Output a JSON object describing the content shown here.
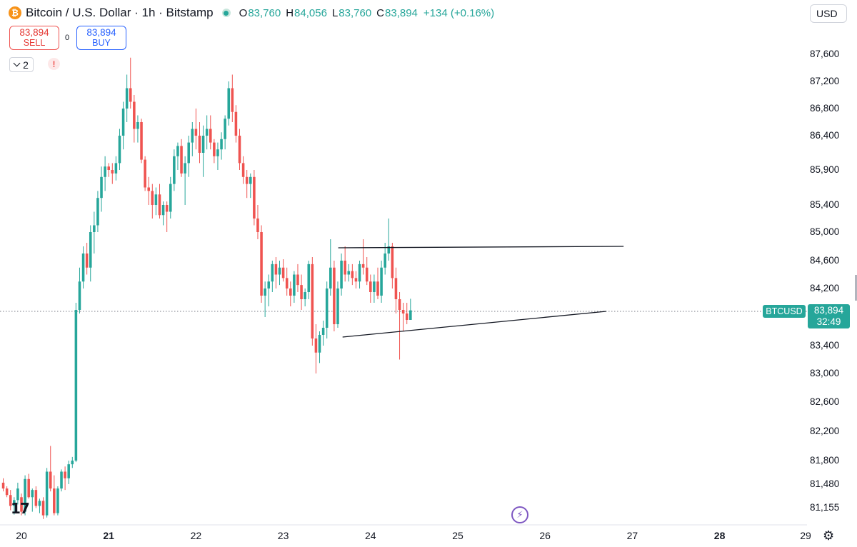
{
  "header": {
    "logo_glyph": "₿",
    "title": "Bitcoin / U.S. Dollar · 1h · Bitstamp",
    "ohlc": [
      {
        "label": "O",
        "value": "83,760"
      },
      {
        "label": "H",
        "value": "84,056"
      },
      {
        "label": "L",
        "value": "83,760"
      },
      {
        "label": "C",
        "value": "83,894"
      }
    ],
    "change": "+134 (+0.16%)"
  },
  "currency": "USD",
  "trade": {
    "sell_price": "83,894",
    "sell_label": "SELL",
    "spread": "0",
    "buy_price": "83,894",
    "buy_label": "BUY"
  },
  "indicators_count": "2",
  "alert_glyph": "!",
  "last_price": {
    "symbol": "BTCUSD",
    "price": "83,894",
    "countdown": "32:49"
  },
  "logo_text": "17",
  "colors": {
    "up": "#26a69a",
    "down": "#ef5350",
    "line": "#131722",
    "text": "#131722"
  },
  "chart_data": {
    "type": "candlestick",
    "symbol": "BTCUSD",
    "interval": "1h",
    "x_tick_labels": [
      "20",
      "21",
      "22",
      "23",
      "24",
      "25",
      "26",
      "27",
      "28",
      "29"
    ],
    "y_tick_labels": [
      "87,600",
      "87,200",
      "86,800",
      "86,400",
      "85,900",
      "85,400",
      "85,000",
      "84,600",
      "84,200",
      "83,400",
      "83,000",
      "82,600",
      "82,200",
      "81,800",
      "81,480",
      "81,155"
    ],
    "last_price": 83894,
    "candles_day_start": 20.0,
    "candles_step_hours": 1,
    "candles": [
      [
        81500,
        81560,
        81380,
        81420
      ],
      [
        81420,
        81450,
        81300,
        81330
      ],
      [
        81330,
        81400,
        81120,
        81180
      ],
      [
        81180,
        81300,
        81060,
        81260
      ],
      [
        81260,
        81500,
        81200,
        81420
      ],
      [
        81300,
        81350,
        81050,
        81100
      ],
      [
        81100,
        81600,
        81050,
        81550
      ],
      [
        81550,
        81620,
        81280,
        81300
      ],
      [
        81300,
        81420,
        81100,
        81400
      ],
      [
        81400,
        81450,
        81150,
        81180
      ],
      [
        81180,
        81280,
        81080,
        81250
      ],
      [
        81250,
        81300,
        81000,
        81050
      ],
      [
        81050,
        81700,
        81020,
        81650
      ],
      [
        81650,
        82000,
        81380,
        81420
      ],
      [
        81420,
        81600,
        81050,
        81080
      ],
      [
        81080,
        81450,
        81050,
        81420
      ],
      [
        81420,
        81680,
        81380,
        81650
      ],
      [
        81650,
        81720,
        81400,
        81560
      ],
      [
        81560,
        81800,
        81480,
        81750
      ],
      [
        81750,
        81850,
        81700,
        81800
      ],
      [
        81800,
        84000,
        81780,
        83900
      ],
      [
        83900,
        84500,
        83850,
        84300
      ],
      [
        84300,
        84800,
        84200,
        84700
      ],
      [
        84700,
        84850,
        84400,
        84500
      ],
      [
        84500,
        85100,
        84300,
        85000
      ],
      [
        85000,
        85300,
        84700,
        85100
      ],
      [
        85100,
        85600,
        85000,
        85500
      ],
      [
        85500,
        85950,
        85300,
        85800
      ],
      [
        85800,
        86100,
        85600,
        85950
      ],
      [
        85950,
        86000,
        85800,
        85900
      ],
      [
        85900,
        86000,
        85700,
        85850
      ],
      [
        85850,
        86100,
        85750,
        86000
      ],
      [
        86000,
        86500,
        85900,
        86400
      ],
      [
        86400,
        86900,
        86200,
        86800
      ],
      [
        86800,
        87300,
        86600,
        87100
      ],
      [
        87100,
        87550,
        86800,
        86900
      ],
      [
        86900,
        87000,
        86300,
        86500
      ],
      [
        86500,
        86700,
        86300,
        86600
      ],
      [
        86600,
        86650,
        86000,
        86050
      ],
      [
        86050,
        86100,
        85600,
        85650
      ],
      [
        85650,
        85800,
        85400,
        85600
      ],
      [
        85600,
        85700,
        85200,
        85400
      ],
      [
        85400,
        85650,
        85250,
        85550
      ],
      [
        85550,
        85700,
        85200,
        85250
      ],
      [
        85250,
        85450,
        85100,
        85400
      ],
      [
        85400,
        85450,
        85000,
        85300
      ],
      [
        85300,
        85800,
        85200,
        85700
      ],
      [
        85700,
        86200,
        85600,
        86100
      ],
      [
        86100,
        86300,
        85900,
        86250
      ],
      [
        86250,
        86350,
        85800,
        85850
      ],
      [
        85850,
        86100,
        85400,
        86000
      ],
      [
        86000,
        86400,
        85800,
        86300
      ],
      [
        86300,
        86600,
        86100,
        86500
      ],
      [
        86500,
        86800,
        86200,
        86400
      ],
      [
        86400,
        86600,
        86000,
        86150
      ],
      [
        86150,
        86550,
        85800,
        86400
      ],
      [
        86400,
        86700,
        86200,
        86500
      ],
      [
        86500,
        86700,
        86200,
        86300
      ],
      [
        86300,
        86350,
        86000,
        86100
      ],
      [
        86100,
        86300,
        85900,
        86200
      ],
      [
        86200,
        86450,
        86050,
        86350
      ],
      [
        86350,
        86700,
        86200,
        86650
      ],
      [
        86650,
        87200,
        86550,
        87100
      ],
      [
        87100,
        87300,
        86600,
        86750
      ],
      [
        86750,
        86850,
        86300,
        86400
      ],
      [
        86400,
        86500,
        85900,
        86000
      ],
      [
        86000,
        86100,
        85700,
        85800
      ],
      [
        85800,
        85900,
        85500,
        85700
      ],
      [
        85700,
        85850,
        85500,
        85800
      ],
      [
        85800,
        85900,
        85100,
        85200
      ],
      [
        85200,
        85400,
        84900,
        85000
      ],
      [
        85000,
        85100,
        84000,
        84100
      ],
      [
        84100,
        84300,
        83800,
        84200
      ],
      [
        84200,
        84400,
        83950,
        84300
      ],
      [
        84300,
        84600,
        84150,
        84550
      ],
      [
        84550,
        84650,
        84200,
        84400
      ],
      [
        84400,
        84600,
        84250,
        84500
      ],
      [
        84500,
        84620,
        84300,
        84350
      ],
      [
        84350,
        84500,
        84100,
        84200
      ],
      [
        84200,
        84300,
        83950,
        84100
      ],
      [
        84100,
        84450,
        84000,
        84400
      ],
      [
        84400,
        84550,
        84150,
        84250
      ],
      [
        84250,
        84400,
        83900,
        84050
      ],
      [
        84050,
        84200,
        83950,
        84150
      ],
      [
        84150,
        84600,
        84050,
        84550
      ],
      [
        84550,
        84650,
        83400,
        83500
      ],
      [
        83500,
        83700,
        83000,
        83300
      ],
      [
        83300,
        83600,
        83150,
        83550
      ],
      [
        83550,
        83750,
        83400,
        83650
      ],
      [
        83650,
        84300,
        83500,
        84200
      ],
      [
        84200,
        84900,
        84100,
        84500
      ],
      [
        84500,
        84600,
        83600,
        83700
      ],
      [
        83700,
        84300,
        83650,
        84200
      ],
      [
        84200,
        84700,
        84100,
        84600
      ],
      [
        84600,
        84800,
        84300,
        84400
      ],
      [
        84400,
        84550,
        84300,
        84450
      ],
      [
        84450,
        84550,
        84250,
        84350
      ],
      [
        84350,
        84450,
        84200,
        84300
      ],
      [
        84300,
        84600,
        84200,
        84550
      ],
      [
        84550,
        84900,
        84400,
        84500
      ],
      [
        84500,
        84650,
        84250,
        84300
      ],
      [
        84300,
        84400,
        84000,
        84150
      ],
      [
        84150,
        84400,
        84000,
        84300
      ],
      [
        84300,
        84500,
        84050,
        84100
      ],
      [
        84100,
        84600,
        84000,
        84500
      ],
      [
        84500,
        84850,
        84400,
        84700
      ],
      [
        84700,
        85200,
        84600,
        84800
      ],
      [
        84800,
        84850,
        84200,
        84350
      ],
      [
        84350,
        84500,
        83850,
        84050
      ],
      [
        84050,
        84150,
        83200,
        83900
      ],
      [
        83900,
        84000,
        83600,
        83850
      ],
      [
        83850,
        84000,
        83700,
        83760
      ],
      [
        83760,
        84056,
        83760,
        83894
      ]
    ],
    "annotations": [
      {
        "type": "trendline",
        "points": [
          [
            23.63,
            84780
          ],
          [
            26.9,
            84800
          ]
        ]
      },
      {
        "type": "trendline",
        "points": [
          [
            23.68,
            83520
          ],
          [
            26.7,
            83880
          ]
        ]
      }
    ]
  }
}
